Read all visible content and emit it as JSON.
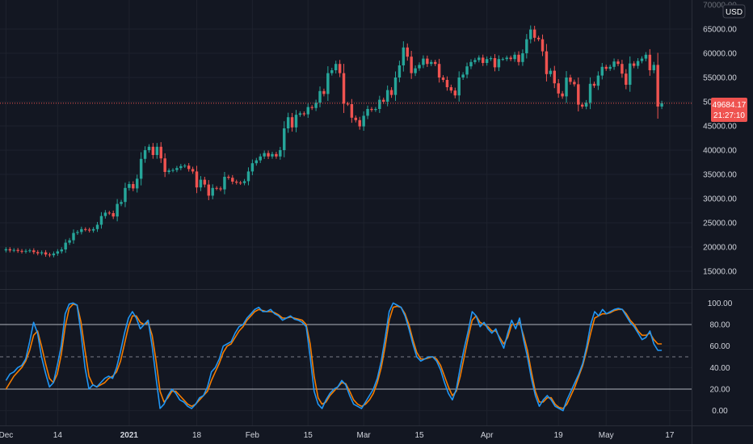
{
  "chart_data": [
    {
      "type": "candlestick",
      "currency": "USD",
      "y_ticks": [
        "15000.00",
        "20000.00",
        "25000.00",
        "30000.00",
        "35000.00",
        "40000.00",
        "45000.00",
        "50000.00",
        "55000.00",
        "60000.00",
        "65000.00",
        "70000.00"
      ],
      "ylim": [
        12000,
        70000
      ],
      "last_price": "49684.17",
      "countdown": "21:27:10",
      "colors": {
        "up": "#26a69a",
        "down": "#ef5350",
        "price_line": "#ef5350",
        "grid": "#1e222d",
        "background": "#131722"
      },
      "x_ticks": [
        {
          "label": "Dec",
          "day": 0
        },
        {
          "label": "14",
          "day": 13
        },
        {
          "label": "2021",
          "day": 31,
          "bold": true
        },
        {
          "label": "18",
          "day": 48
        },
        {
          "label": "Feb",
          "day": 62
        },
        {
          "label": "15",
          "day": 76
        },
        {
          "label": "Mar",
          "day": 90
        },
        {
          "label": "15",
          "day": 104
        },
        {
          "label": "Apr",
          "day": 121
        },
        {
          "label": "19",
          "day": 139
        },
        {
          "label": "May",
          "day": 151
        },
        {
          "label": "17",
          "day": 167
        }
      ],
      "xlim": [
        -1.5,
        172.5
      ],
      "close": [
        19550,
        19300,
        19400,
        19200,
        19050,
        19200,
        19300,
        18950,
        18700,
        18900,
        18450,
        18300,
        18650,
        19100,
        19500,
        20900,
        21400,
        22900,
        23100,
        23700,
        23600,
        23400,
        23700,
        24600,
        26400,
        27100,
        27000,
        26300,
        28900,
        29300,
        32200,
        33000,
        32100,
        34100,
        38200,
        40000,
        40700,
        39000,
        40700,
        38300,
        35500,
        35800,
        35900,
        36300,
        36700,
        36800,
        36100,
        35600,
        32300,
        33900,
        32900,
        30600,
        32200,
        32100,
        31900,
        34500,
        34300,
        33500,
        33300,
        33200,
        33600,
        35600,
        37300,
        37900,
        38700,
        39400,
        38700,
        39200,
        38700,
        40000,
        44500,
        46800,
        44700,
        47300,
        47600,
        47400,
        48900,
        48700,
        49800,
        52200,
        51600,
        55900,
        56500,
        57800,
        55900,
        49600,
        49500,
        46700,
        46200,
        44900,
        47100,
        48500,
        48300,
        48500,
        50400,
        50000,
        52400,
        51400,
        55000,
        57500,
        61200,
        59300,
        55900,
        56900,
        57600,
        58900,
        57800,
        58200,
        57800,
        55000,
        54500,
        53000,
        52300,
        51300,
        55000,
        55600,
        57300,
        58200,
        58600,
        59100,
        58000,
        58800,
        59000,
        57100,
        58800,
        58800,
        59100,
        58800,
        59700,
        58200,
        60000,
        62900,
        64900,
        63200,
        62900,
        60400,
        55700,
        56400,
        53800,
        51700,
        51100,
        55000,
        54100,
        53600,
        49400,
        49000,
        49800,
        53700,
        53300,
        55400,
        57200,
        56800,
        57200,
        58300,
        57800,
        55800,
        53500,
        57900,
        57400,
        58400,
        58900,
        59700,
        56500,
        57600,
        49000,
        49684
      ],
      "open": [
        19300,
        19550,
        19300,
        19400,
        19200,
        19050,
        19200,
        19300,
        18950,
        18700,
        18900,
        18450,
        18300,
        18650,
        19100,
        19500,
        20900,
        21400,
        22900,
        23100,
        23700,
        23600,
        23400,
        23700,
        24600,
        26400,
        27100,
        27000,
        26300,
        28900,
        29300,
        32200,
        33000,
        32100,
        34100,
        38200,
        40000,
        40700,
        39000,
        40700,
        38300,
        35500,
        35800,
        35900,
        36300,
        36700,
        36800,
        36100,
        35600,
        32300,
        33900,
        32900,
        30600,
        32200,
        32100,
        31900,
        34500,
        34300,
        33500,
        33300,
        33200,
        33600,
        35600,
        37300,
        37900,
        38700,
        39400,
        38700,
        39200,
        38700,
        40000,
        44500,
        46800,
        44700,
        47300,
        47600,
        47400,
        48900,
        48700,
        49800,
        52200,
        51600,
        55900,
        56500,
        57800,
        55900,
        49600,
        49500,
        46700,
        46200,
        44900,
        47100,
        48500,
        48300,
        48500,
        50400,
        50000,
        52400,
        51400,
        55000,
        57500,
        61200,
        59300,
        55900,
        56900,
        57600,
        58900,
        57800,
        58200,
        57800,
        55000,
        54500,
        53000,
        52300,
        51300,
        55000,
        55600,
        57300,
        58200,
        58600,
        59100,
        58000,
        58800,
        59000,
        57100,
        58800,
        58800,
        59100,
        58800,
        59700,
        58200,
        60000,
        62900,
        64900,
        63200,
        62900,
        60400,
        55700,
        56400,
        53800,
        51700,
        51100,
        55000,
        54100,
        53600,
        49400,
        49000,
        49800,
        53700,
        53300,
        55400,
        57200,
        56800,
        57200,
        58300,
        57800,
        55800,
        53500,
        57900,
        57400,
        58400,
        58900,
        59700,
        56500,
        57600,
        49000
      ]
    },
    {
      "type": "line",
      "indicator": "stochastic_rsi",
      "y_ticks": [
        "0.00",
        "20.00",
        "40.00",
        "60.00",
        "80.00",
        "100.00"
      ],
      "ylim": [
        -10,
        110
      ],
      "bands": [
        80,
        50,
        20
      ],
      "series": [
        {
          "color": "#2196f3",
          "values": [
            28,
            34,
            36,
            40,
            42,
            48,
            64,
            82,
            72,
            50,
            35,
            22,
            26,
            42,
            60,
            90,
            99,
            100,
            98,
            72,
            40,
            20,
            24,
            22,
            26,
            30,
            32,
            30,
            40,
            55,
            72,
            86,
            92,
            86,
            76,
            80,
            84,
            60,
            30,
            2,
            6,
            14,
            20,
            16,
            10,
            8,
            4,
            2,
            6,
            12,
            14,
            22,
            36,
            40,
            48,
            60,
            62,
            64,
            72,
            78,
            80,
            86,
            90,
            94,
            96,
            92,
            92,
            94,
            90,
            88,
            84,
            86,
            88,
            85,
            84,
            82,
            78,
            50,
            18,
            6,
            2,
            10,
            16,
            20,
            22,
            28,
            24,
            14,
            6,
            4,
            2,
            8,
            14,
            20,
            30,
            46,
            68,
            92,
            100,
            98,
            96,
            88,
            76,
            62,
            50,
            46,
            48,
            50,
            50,
            46,
            38,
            26,
            16,
            10,
            20,
            40,
            58,
            74,
            92,
            88,
            78,
            82,
            76,
            72,
            76,
            66,
            58,
            72,
            84,
            76,
            86,
            66,
            50,
            30,
            14,
            4,
            10,
            14,
            10,
            4,
            2,
            0,
            10,
            18,
            26,
            34,
            44,
            60,
            80,
            92,
            88,
            94,
            90,
            92,
            94,
            95,
            94,
            88,
            82,
            78,
            72,
            66,
            68,
            74,
            62,
            56,
            56
          ],
          "note": "blue K line"
        },
        {
          "color": "#f57c00",
          "values": [
            20,
            26,
            32,
            36,
            40,
            46,
            56,
            70,
            74,
            60,
            44,
            30,
            26,
            34,
            52,
            78,
            95,
            99,
            98,
            82,
            56,
            32,
            24,
            22,
            24,
            26,
            30,
            32,
            36,
            46,
            62,
            78,
            88,
            88,
            82,
            80,
            82,
            70,
            46,
            18,
            8,
            12,
            18,
            18,
            14,
            10,
            6,
            4,
            6,
            10,
            14,
            18,
            28,
            36,
            44,
            54,
            60,
            62,
            68,
            74,
            78,
            84,
            88,
            92,
            94,
            93,
            92,
            92,
            91,
            89,
            86,
            86,
            87,
            86,
            85,
            84,
            80,
            62,
            32,
            12,
            6,
            8,
            14,
            18,
            22,
            26,
            25,
            18,
            10,
            6,
            4,
            6,
            10,
            16,
            26,
            40,
            60,
            84,
            96,
            97,
            96,
            90,
            80,
            66,
            54,
            48,
            48,
            49,
            50,
            48,
            42,
            32,
            22,
            14,
            18,
            32,
            50,
            68,
            84,
            88,
            82,
            80,
            78,
            74,
            74,
            68,
            62,
            68,
            80,
            80,
            82,
            70,
            56,
            36,
            18,
            8,
            8,
            12,
            12,
            6,
            3,
            2,
            6,
            14,
            22,
            32,
            42,
            56,
            72,
            86,
            88,
            90,
            90,
            91,
            93,
            94,
            94,
            90,
            84,
            80,
            74,
            70,
            70,
            72,
            66,
            62,
            62
          ],
          "note": "orange D line"
        }
      ],
      "colors": {
        "band": "#b2b5be",
        "mid": "#787b86"
      }
    }
  ]
}
